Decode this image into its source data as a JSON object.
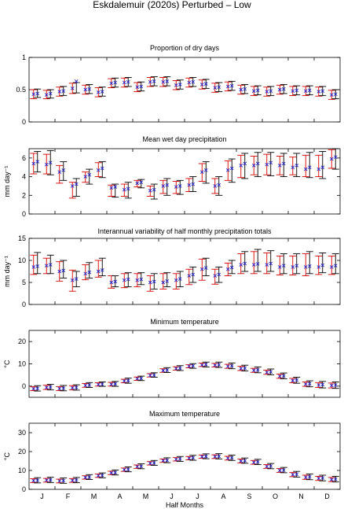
{
  "page": {
    "title": "Eskdalemuir (2020s) Perturbed – Low"
  },
  "colors": {
    "obs": "#000000",
    "model": "#d40000",
    "model_mean": "#2222cc",
    "obs_mean": "#cc0033"
  },
  "x_label": "Half Months",
  "month_labels": [
    "J",
    "F",
    "M",
    "A",
    "M",
    "J",
    "J",
    "A",
    "S",
    "O",
    "N",
    "D"
  ],
  "chart_data": [
    {
      "type": "errorbar",
      "title": "Proportion of dry days",
      "ylabel": "",
      "ylim": [
        0,
        1
      ],
      "yticks": [
        0,
        0.5,
        1
      ],
      "yticklabels": [
        "0",
        "0.5",
        "1"
      ],
      "grid": false,
      "series": [
        {
          "mean": [
            0.43,
            0.42,
            0.47,
            0.52,
            0.5,
            0.46,
            0.6,
            0.61,
            0.54,
            0.62,
            0.62,
            0.57,
            0.61,
            0.58,
            0.53,
            0.55,
            0.5,
            0.48,
            0.47,
            0.5,
            0.48,
            0.48,
            0.47,
            0.42
          ],
          "low": [
            0.36,
            0.36,
            0.4,
            0.44,
            0.43,
            0.39,
            0.53,
            0.54,
            0.47,
            0.55,
            0.55,
            0.5,
            0.54,
            0.51,
            0.46,
            0.48,
            0.43,
            0.41,
            0.4,
            0.43,
            0.41,
            0.41,
            0.4,
            0.35
          ],
          "high": [
            0.5,
            0.49,
            0.54,
            0.6,
            0.57,
            0.53,
            0.67,
            0.68,
            0.61,
            0.69,
            0.69,
            0.64,
            0.68,
            0.65,
            0.6,
            0.62,
            0.57,
            0.55,
            0.54,
            0.57,
            0.55,
            0.55,
            0.54,
            0.49
          ]
        },
        {
          "mean": [
            0.44,
            0.44,
            0.48,
            0.63,
            0.51,
            0.47,
            0.61,
            0.62,
            0.55,
            0.63,
            0.63,
            0.58,
            0.62,
            0.59,
            0.54,
            0.56,
            0.51,
            0.49,
            0.48,
            0.51,
            0.49,
            0.49,
            0.48,
            0.43
          ],
          "low": [
            0.38,
            0.37,
            0.41,
            0.45,
            0.44,
            0.4,
            0.54,
            0.55,
            0.48,
            0.56,
            0.56,
            0.51,
            0.55,
            0.52,
            0.47,
            0.49,
            0.44,
            0.42,
            0.41,
            0.44,
            0.42,
            0.42,
            0.41,
            0.36
          ],
          "high": [
            0.51,
            0.5,
            0.55,
            0.61,
            0.58,
            0.54,
            0.68,
            0.69,
            0.62,
            0.7,
            0.7,
            0.65,
            0.69,
            0.66,
            0.61,
            0.63,
            0.58,
            0.56,
            0.55,
            0.58,
            0.56,
            0.56,
            0.55,
            0.5
          ]
        }
      ]
    },
    {
      "type": "errorbar",
      "title": "Mean wet day precipitation",
      "ylabel": "mm day⁻¹",
      "ylim": [
        0,
        7
      ],
      "yticks": [
        0,
        2,
        4,
        6
      ],
      "yticklabels": [
        "0",
        "2",
        "4",
        "6"
      ],
      "grid": false,
      "series": [
        {
          "mean": [
            5.4,
            5.3,
            4.5,
            3.0,
            4.0,
            4.7,
            2.8,
            2.6,
            3.3,
            2.5,
            3.0,
            2.9,
            3.1,
            4.5,
            3.0,
            4.7,
            5.2,
            5.2,
            5.3,
            5.2,
            5.0,
            4.8,
            4.8,
            5.9
          ],
          "low": [
            4.3,
            4.3,
            3.3,
            1.7,
            3.4,
            4.0,
            1.9,
            1.9,
            2.9,
            1.9,
            2.2,
            2.2,
            2.4,
            3.5,
            2.2,
            3.6,
            3.9,
            4.2,
            4.2,
            4.2,
            4.2,
            4.0,
            4.0,
            4.9
          ],
          "high": [
            6.5,
            6.4,
            5.2,
            3.4,
            4.5,
            5.5,
            3.1,
            3.2,
            3.6,
            3.0,
            3.6,
            3.5,
            3.8,
            5.4,
            3.8,
            5.7,
            6.3,
            6.2,
            6.4,
            6.2,
            6.1,
            6.3,
            6.3,
            6.9
          ]
        },
        {
          "mean": [
            5.6,
            5.5,
            4.7,
            3.2,
            4.2,
            4.9,
            2.9,
            2.7,
            3.4,
            2.6,
            3.1,
            3.0,
            3.2,
            4.7,
            3.1,
            4.9,
            5.4,
            5.4,
            5.5,
            5.4,
            5.2,
            5.0,
            5.0,
            6.1
          ],
          "low": [
            4.5,
            4.2,
            3.6,
            1.9,
            3.2,
            3.9,
            1.8,
            1.7,
            2.8,
            1.6,
            2.0,
            2.1,
            2.4,
            3.3,
            2.0,
            3.4,
            3.8,
            4.0,
            4.1,
            4.0,
            4.0,
            3.9,
            3.8,
            4.8
          ],
          "high": [
            6.7,
            6.8,
            5.6,
            3.8,
            4.8,
            5.6,
            3.2,
            3.4,
            3.7,
            3.2,
            3.8,
            3.6,
            4.0,
            5.6,
            4.0,
            5.9,
            6.5,
            6.6,
            6.6,
            6.5,
            6.5,
            6.6,
            6.7,
            7.0
          ]
        }
      ]
    },
    {
      "type": "errorbar",
      "title": "Interannual variability of half monthly precipitation totals",
      "ylabel": "mm day⁻¹",
      "ylim": [
        0,
        15
      ],
      "yticks": [
        0,
        5,
        10,
        15
      ],
      "yticklabels": [
        "0",
        "5",
        "10",
        "15"
      ],
      "grid": false,
      "series": [
        {
          "mean": [
            8.5,
            8.8,
            7.5,
            5.5,
            7.0,
            7.5,
            5.0,
            5.5,
            5.5,
            5.0,
            5.0,
            5.5,
            6.5,
            8.0,
            6.5,
            8.0,
            9.0,
            9.0,
            9.0,
            8.5,
            8.5,
            8.5,
            8.5,
            8.5
          ],
          "low": [
            6.8,
            7.0,
            5.3,
            3.0,
            5.6,
            6.2,
            3.7,
            3.8,
            4.0,
            3.0,
            3.5,
            3.5,
            4.5,
            5.5,
            4.6,
            6.5,
            7.0,
            7.0,
            7.0,
            6.7,
            6.7,
            6.5,
            6.8,
            6.8
          ],
          "high": [
            11.2,
            10.5,
            9.7,
            7.8,
            9.0,
            10.0,
            6.5,
            7.0,
            7.0,
            6.5,
            7.0,
            7.0,
            8.0,
            10.3,
            8.0,
            9.4,
            11.5,
            12.0,
            11.7,
            11.0,
            11.0,
            11.5,
            11.0,
            11.0
          ]
        },
        {
          "mean": [
            8.7,
            9.0,
            7.7,
            5.8,
            7.3,
            7.8,
            5.2,
            5.7,
            5.7,
            5.2,
            5.3,
            5.8,
            6.8,
            8.3,
            6.8,
            8.4,
            9.3,
            9.2,
            9.3,
            8.8,
            8.8,
            8.7,
            8.9,
            8.8
          ],
          "low": [
            7.0,
            7.0,
            6.0,
            4.0,
            6.0,
            6.5,
            4.0,
            4.0,
            4.5,
            3.5,
            4.0,
            4.0,
            5.0,
            6.5,
            5.0,
            7.0,
            7.5,
            7.5,
            7.5,
            7.0,
            7.0,
            7.0,
            7.2,
            7.0
          ],
          "high": [
            11.8,
            11.2,
            10.0,
            7.5,
            9.5,
            10.5,
            6.5,
            7.2,
            7.2,
            7.0,
            7.2,
            7.5,
            8.5,
            10.5,
            8.5,
            10.0,
            12.0,
            12.5,
            12.2,
            11.5,
            11.5,
            12.0,
            11.7,
            11.5
          ]
        }
      ]
    },
    {
      "type": "errorbar",
      "title": "Minimum temperature",
      "ylabel": "°C",
      "ylim": [
        -5,
        25
      ],
      "yticks": [
        0,
        10,
        20
      ],
      "yticklabels": [
        "0",
        "10",
        "20"
      ],
      "grid": false,
      "series": [
        {
          "mean": [
            -1.2,
            -0.6,
            -1.1,
            -0.8,
            0.3,
            0.7,
            0.8,
            2.3,
            3.3,
            4.8,
            7.0,
            7.9,
            8.9,
            9.5,
            9.4,
            8.9,
            7.9,
            7.1,
            6.2,
            4.4,
            2.5,
            0.9,
            0.5,
            0.3
          ],
          "low": [
            -2.0,
            -1.5,
            -2.0,
            -1.7,
            -0.5,
            0.0,
            0.0,
            1.5,
            2.6,
            4.1,
            6.2,
            7.2,
            8.2,
            8.8,
            8.6,
            8.0,
            7.0,
            6.2,
            5.3,
            3.5,
            1.5,
            -0.1,
            -0.6,
            -0.8
          ],
          "high": [
            -0.3,
            0.4,
            -0.2,
            0.2,
            1.2,
            1.5,
            1.7,
            3.1,
            4.1,
            5.6,
            7.8,
            8.7,
            9.6,
            10.3,
            10.2,
            9.8,
            8.9,
            8.0,
            7.2,
            5.4,
            3.5,
            1.9,
            1.6,
            1.4
          ]
        },
        {
          "mean": [
            -1.0,
            -0.4,
            -0.9,
            -0.6,
            0.5,
            0.9,
            1.0,
            2.5,
            3.5,
            5.0,
            7.2,
            8.1,
            9.1,
            9.7,
            9.6,
            9.1,
            8.1,
            7.3,
            6.4,
            4.6,
            2.7,
            1.1,
            0.7,
            0.5
          ],
          "low": [
            -2.2,
            -1.7,
            -2.1,
            -1.8,
            -0.6,
            -0.1,
            -0.1,
            1.3,
            2.5,
            4.0,
            6.1,
            7.0,
            8.0,
            8.6,
            8.4,
            7.8,
            6.8,
            6.0,
            5.1,
            3.3,
            1.3,
            -0.3,
            -0.8,
            -1.0
          ],
          "high": [
            0.2,
            0.8,
            0.3,
            0.6,
            1.6,
            1.9,
            2.1,
            3.6,
            4.5,
            6.0,
            8.3,
            9.2,
            10.1,
            10.8,
            10.8,
            10.4,
            9.4,
            8.6,
            7.7,
            5.9,
            4.0,
            2.4,
            2.1,
            1.9
          ]
        }
      ]
    },
    {
      "type": "errorbar",
      "title": "Maximum temperature",
      "ylabel": "°C",
      "ylim": [
        0,
        35
      ],
      "yticks": [
        0,
        10,
        20,
        30
      ],
      "yticklabels": [
        "0",
        "10",
        "20",
        "30"
      ],
      "grid": false,
      "series": [
        {
          "mean": [
            4.6,
            4.8,
            4.4,
            4.7,
            6.3,
            7.2,
            8.7,
            10.4,
            12.0,
            13.8,
            15.2,
            15.9,
            16.5,
            17.3,
            17.3,
            16.5,
            15.0,
            14.3,
            12.1,
            10.0,
            7.8,
            6.4,
            5.8,
            5.2
          ],
          "low": [
            3.6,
            3.8,
            3.4,
            3.7,
            5.4,
            6.3,
            7.8,
            9.5,
            11.1,
            12.9,
            14.3,
            15.0,
            15.6,
            16.4,
            16.3,
            15.5,
            14.0,
            13.3,
            11.1,
            9.0,
            6.7,
            5.3,
            4.7,
            4.1
          ],
          "high": [
            5.6,
            5.8,
            5.4,
            5.7,
            7.2,
            8.1,
            9.6,
            11.3,
            12.9,
            14.7,
            16.1,
            16.8,
            17.4,
            18.2,
            18.3,
            17.5,
            16.0,
            15.3,
            13.1,
            11.0,
            8.9,
            7.5,
            6.9,
            6.3
          ]
        },
        {
          "mean": [
            4.8,
            5.0,
            4.6,
            4.9,
            6.5,
            7.4,
            8.9,
            10.6,
            12.2,
            14.0,
            15.4,
            16.1,
            16.7,
            17.5,
            17.5,
            16.7,
            15.2,
            14.5,
            12.3,
            10.2,
            8.0,
            6.6,
            6.0,
            5.4
          ],
          "low": [
            3.4,
            3.6,
            3.2,
            3.5,
            5.2,
            6.1,
            7.6,
            9.3,
            10.9,
            12.7,
            14.1,
            14.8,
            15.4,
            16.2,
            16.1,
            15.3,
            13.8,
            13.1,
            10.9,
            8.8,
            6.5,
            5.1,
            4.5,
            3.9
          ],
          "high": [
            6.2,
            6.4,
            6.0,
            6.3,
            7.8,
            8.7,
            10.2,
            11.9,
            13.5,
            15.3,
            16.7,
            17.4,
            18.0,
            18.8,
            18.9,
            18.1,
            16.6,
            15.9,
            13.7,
            11.6,
            9.5,
            8.1,
            7.5,
            6.9
          ]
        }
      ]
    }
  ]
}
